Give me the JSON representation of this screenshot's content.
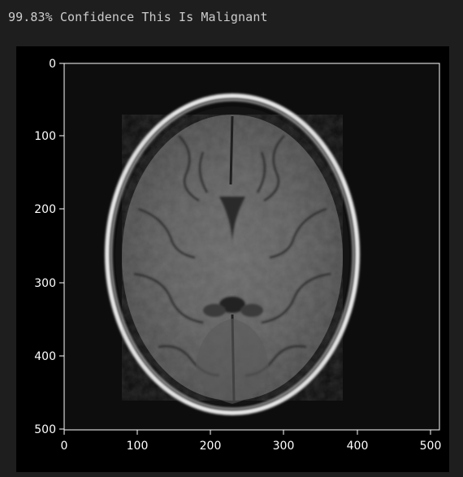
{
  "cell_output": {
    "text": "99.83% Confidence This Is Malignant"
  },
  "figure": {
    "image_description_icon": "brain-mri-axial-slice-icon",
    "x_axis": {
      "range": [
        0,
        512
      ],
      "ticks": [
        "0",
        "100",
        "200",
        "300",
        "400",
        "500"
      ]
    },
    "y_axis": {
      "range": [
        0,
        512
      ],
      "ticks": [
        "0",
        "100",
        "200",
        "300",
        "400",
        "500"
      ]
    }
  }
}
